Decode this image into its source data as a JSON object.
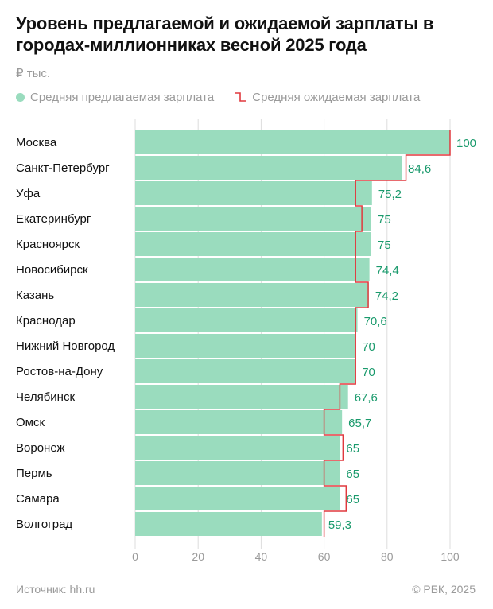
{
  "title": "Уровень предлагаемой и ожидаемой зарплаты в городах-миллионниках весной 2025 года",
  "unit": "₽ тыс.",
  "legend": {
    "offered": "Средняя предлагаемая зарплата",
    "expected": "Средняя ожидаемая зарплата"
  },
  "colors": {
    "bar": "#9adcbe",
    "expected_line": "#e0393e",
    "value_label": "#1a9a6c",
    "grid": "#dddddd",
    "axis_text": "#9a9a9a"
  },
  "chart_data": {
    "type": "bar",
    "orientation": "horizontal",
    "categories": [
      "Москва",
      "Санкт-Петербург",
      "Уфа",
      "Екатеринбург",
      "Красноярск",
      "Новосибирск",
      "Казань",
      "Краснодар",
      "Нижний Новгород",
      "Ростов-на-Дону",
      "Челябинск",
      "Омск",
      "Воронеж",
      "Пермь",
      "Самара",
      "Волгоград"
    ],
    "series": [
      {
        "name": "Средняя предлагаемая зарплата",
        "values": [
          100,
          84.6,
          75.2,
          75,
          75,
          74.4,
          74.2,
          70.6,
          70,
          70,
          67.6,
          65.7,
          65,
          65,
          65,
          59.3
        ],
        "labels": [
          "100",
          "84,6",
          "75,2",
          "75",
          "75",
          "74,4",
          "74,2",
          "70,6",
          "70",
          "70",
          "67,6",
          "65,7",
          "65",
          "65",
          "65",
          "59,3"
        ]
      },
      {
        "name": "Средняя ожидаемая зарплата",
        "values": [
          100,
          86,
          70,
          72,
          70,
          70,
          74,
          70,
          70,
          70,
          65,
          60,
          66,
          60,
          67,
          60
        ]
      }
    ],
    "xlim": [
      0,
      100
    ],
    "xticks": [
      "0",
      "20",
      "40",
      "60",
      "80",
      "100"
    ],
    "grid": "vertical"
  },
  "footer": {
    "source": "Источник: hh.ru",
    "copyright": "© РБК, 2025"
  }
}
